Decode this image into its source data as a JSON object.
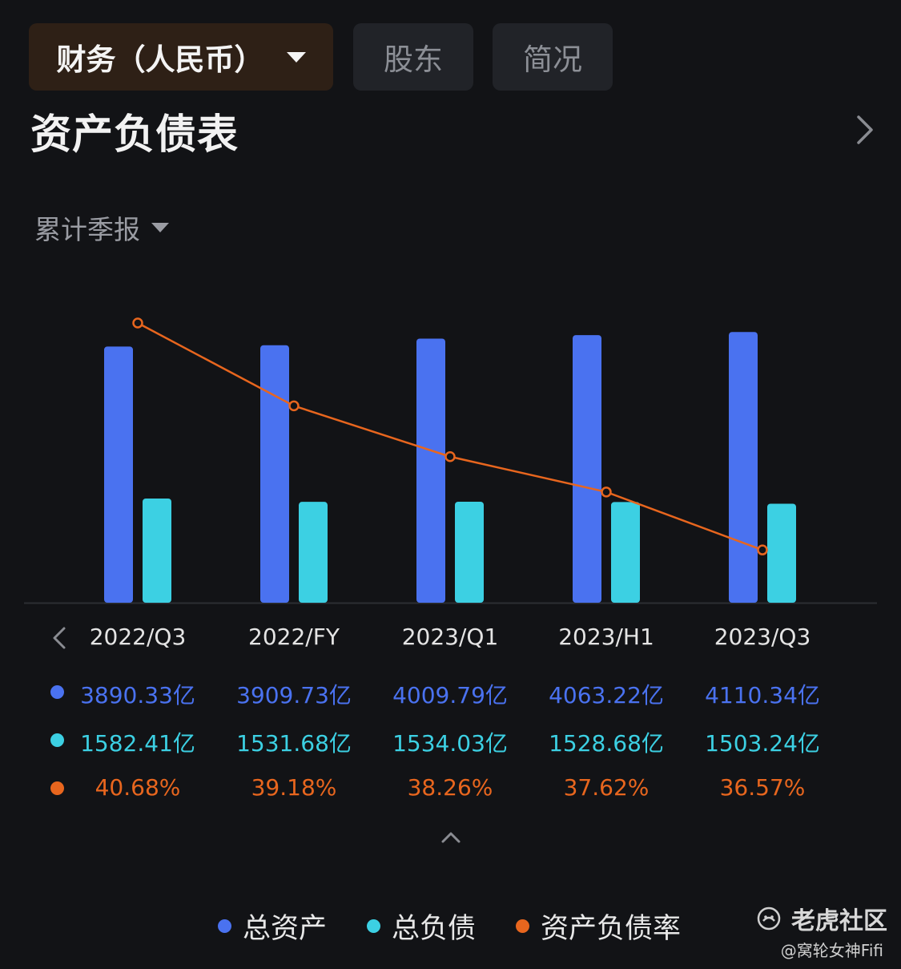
{
  "tabs": {
    "finance_label": "财务（人民币）",
    "holders_label": "股东",
    "brief_label": "简况"
  },
  "section_title": "资产负债表",
  "period_selector": "累计季报",
  "colors": {
    "assets": "#4a72f0",
    "liabilities": "#3cd0e3",
    "ratio": "#e8661e"
  },
  "chart_data": {
    "type": "bar",
    "categories": [
      "2022/Q3",
      "2022/FY",
      "2023/Q1",
      "2023/H1",
      "2023/Q3"
    ],
    "series": [
      {
        "name": "总资产",
        "type": "bar",
        "values": [
          3890.33,
          3909.73,
          4009.79,
          4063.22,
          4110.34
        ],
        "labels": [
          "3890.33亿",
          "3909.73亿",
          "4009.79亿",
          "4063.22亿",
          "4110.34亿"
        ]
      },
      {
        "name": "总负债",
        "type": "bar",
        "values": [
          1582.41,
          1531.68,
          1534.03,
          1528.68,
          1503.24
        ],
        "labels": [
          "1582.41亿",
          "1531.68亿",
          "1534.03亿",
          "1528.68亿",
          "1503.24亿"
        ]
      },
      {
        "name": "资产负债率",
        "type": "line",
        "values": [
          40.68,
          39.18,
          38.26,
          37.62,
          36.57
        ],
        "labels": [
          "40.68%",
          "39.18%",
          "38.26%",
          "37.62%",
          "36.57%"
        ]
      }
    ]
  },
  "legend": [
    "总资产",
    "总负债",
    "资产负债率"
  ],
  "brand": "老虎社区",
  "credit": "@窝轮女神Fifi",
  "icons": {
    "prev": "chevron-left-icon",
    "next": "chevron-right-icon",
    "collapse": "chevron-up-icon",
    "brand": "tiger-community-icon"
  }
}
